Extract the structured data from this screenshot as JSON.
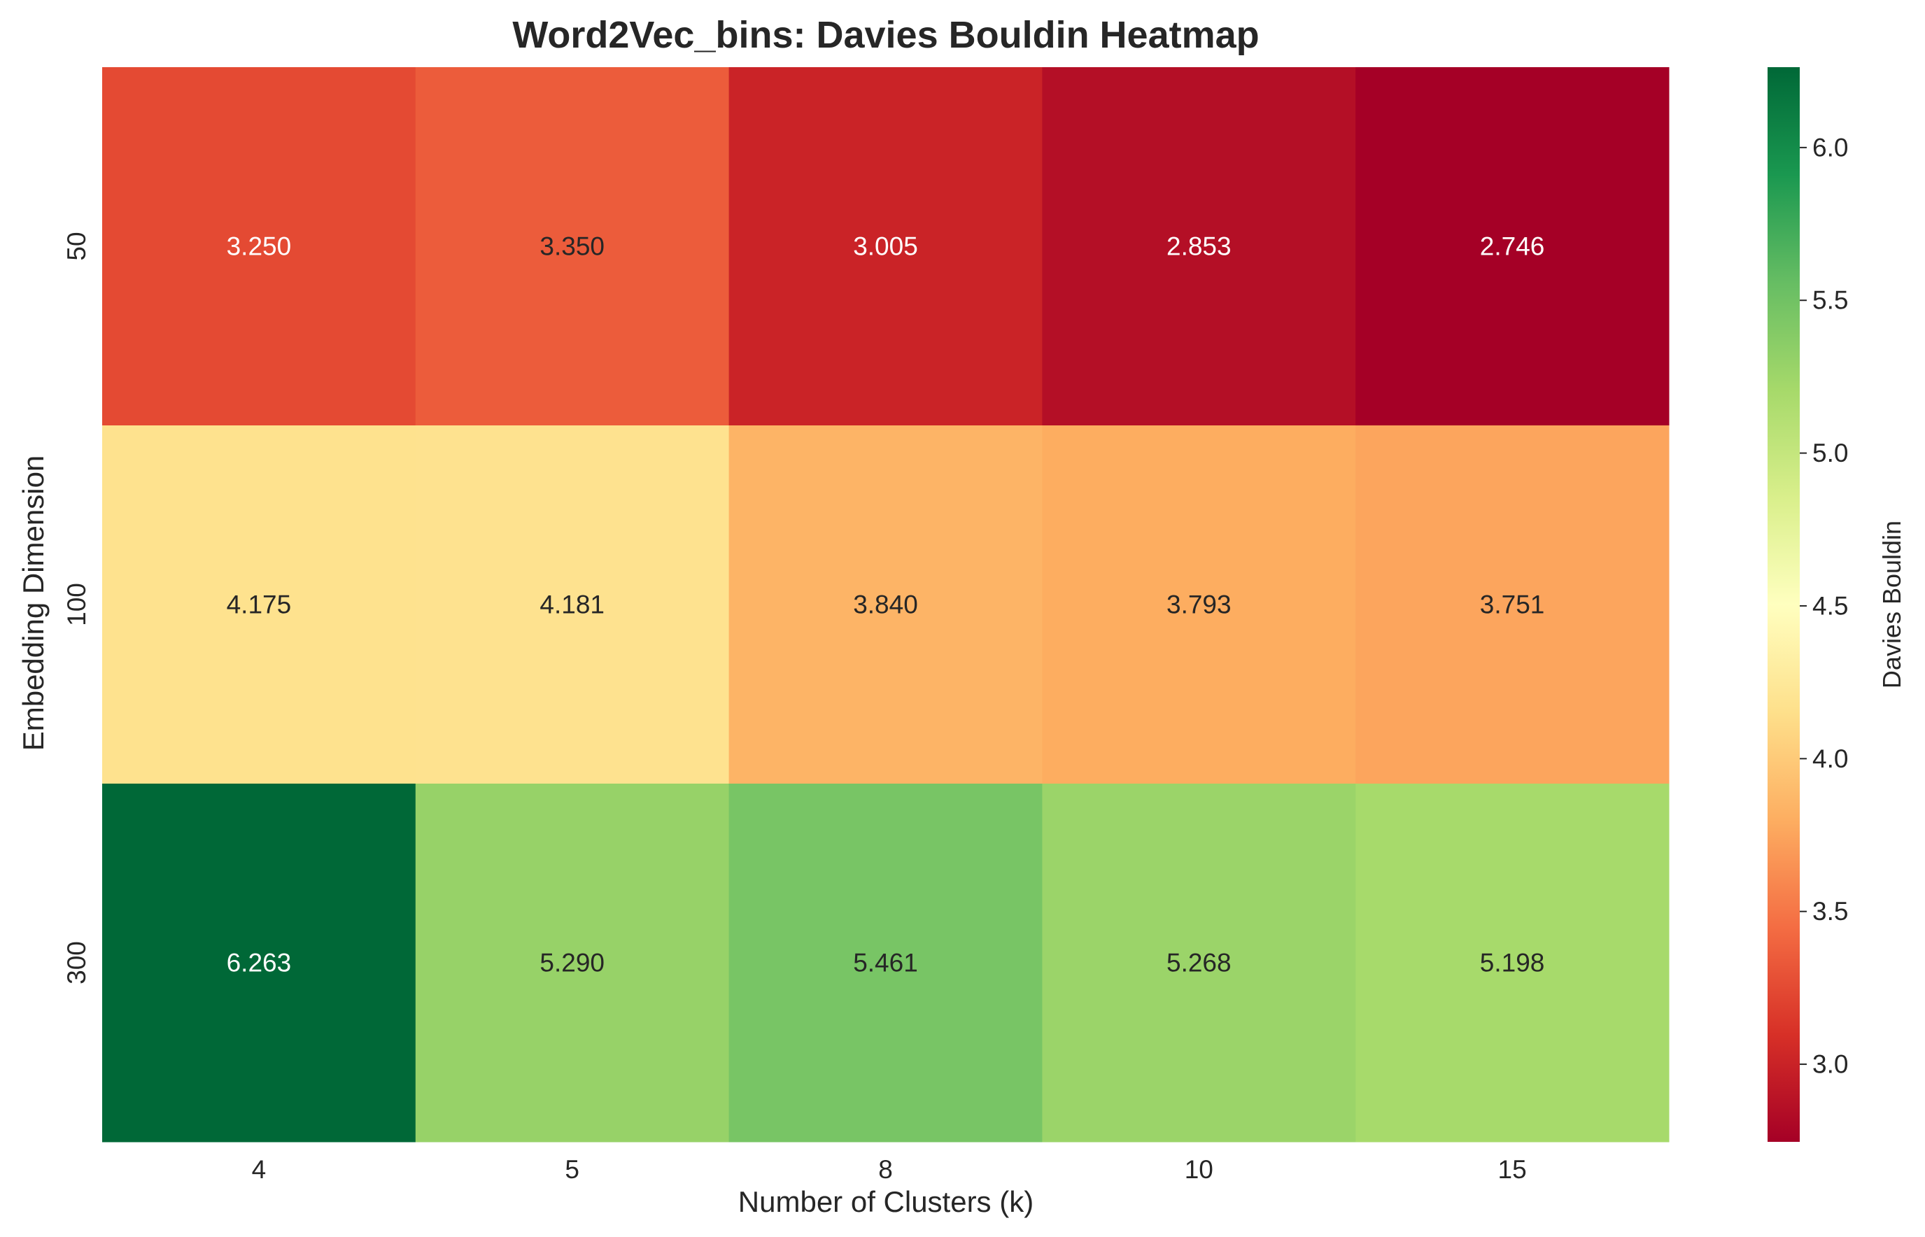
{
  "chart_data": {
    "type": "heatmap",
    "title": "Word2Vec_bins: Davies Bouldin Heatmap",
    "xlabel": "Number of Clusters (k)",
    "ylabel": "Embedding Dimension",
    "x_categories": [
      "4",
      "5",
      "8",
      "10",
      "15"
    ],
    "y_categories": [
      "50",
      "100",
      "300"
    ],
    "values": [
      [
        3.25,
        3.35,
        3.005,
        2.853,
        2.746
      ],
      [
        4.175,
        4.181,
        3.84,
        3.793,
        3.751
      ],
      [
        6.263,
        5.29,
        5.461,
        5.268,
        5.198
      ]
    ],
    "value_format": "3 decimals",
    "colorbar": {
      "label": "Davies Bouldin",
      "min": 2.746,
      "max": 6.263,
      "ticks": [
        "3.0",
        "3.5",
        "4.0",
        "4.5",
        "5.0",
        "5.5",
        "6.0"
      ],
      "colormap": "RdYlGn",
      "colors": [
        "#a50026",
        "#d73027",
        "#f46d43",
        "#fdae61",
        "#fee08b",
        "#ffffbf",
        "#d9ef8b",
        "#a6d96a",
        "#66bd63",
        "#1a9850",
        "#006837"
      ]
    },
    "grid": false,
    "legend": "colorbar-right"
  }
}
